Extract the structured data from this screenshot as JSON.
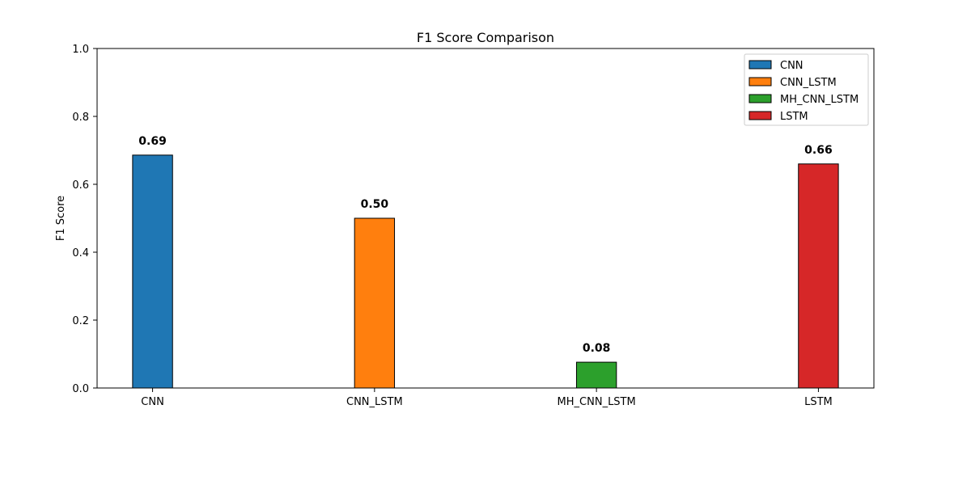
{
  "chart_data": {
    "type": "bar",
    "title": "F1 Score Comparison",
    "xlabel": "",
    "ylabel": "F1 Score",
    "ylim": [
      0,
      1.0
    ],
    "yticks": [
      "0.0",
      "0.2",
      "0.4",
      "0.6",
      "0.8",
      "1.0"
    ],
    "categories": [
      "CNN",
      "CNN_LSTM",
      "MH_CNN_LSTM",
      "LSTM"
    ],
    "values": [
      0.686,
      0.5,
      0.076,
      0.66
    ],
    "value_labels": [
      "0.69",
      "0.50",
      "0.08",
      "0.66"
    ],
    "colors": [
      "#1f77b4",
      "#ff7f0e",
      "#2ca02c",
      "#d62728"
    ],
    "grid": false,
    "legend": {
      "placement": "top-right",
      "entries": [
        "CNN",
        "CNN_LSTM",
        "MH_CNN_LSTM",
        "LSTM"
      ]
    }
  }
}
